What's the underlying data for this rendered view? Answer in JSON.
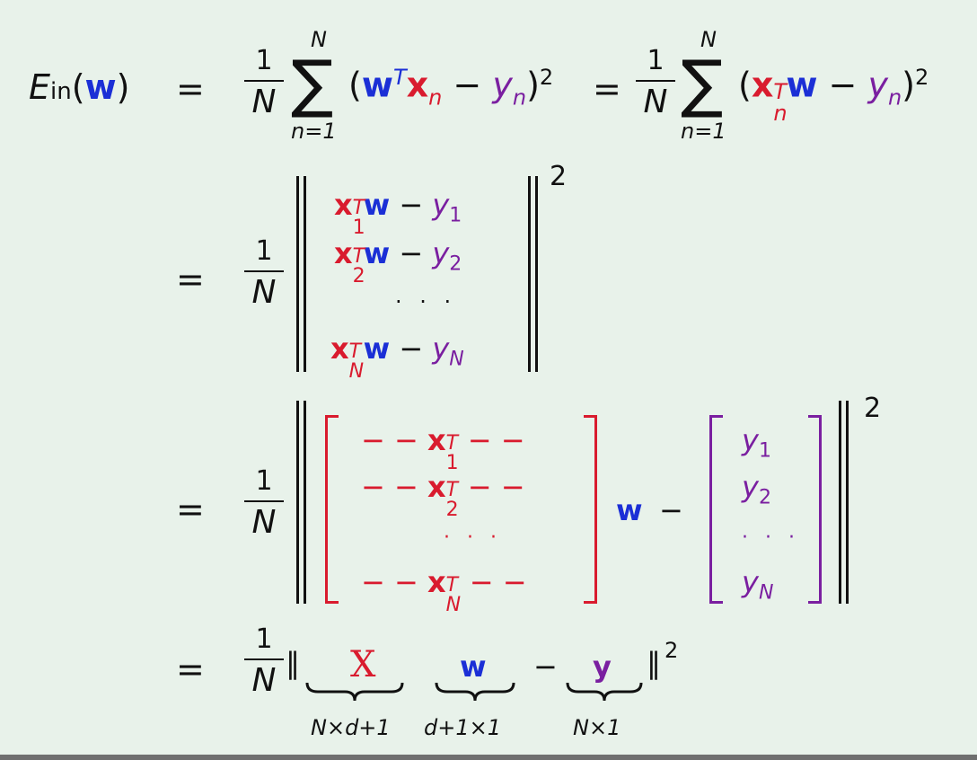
{
  "slide": {
    "background": "#e8f2ea",
    "colors": {
      "w": "#1b2fd6",
      "x": "#d91b2e",
      "y": "#7a1fa0"
    },
    "line1": {
      "lhs_E": "E",
      "lhs_sub": "in",
      "lhs_open": "(",
      "lhs_w": "w",
      "lhs_close": ")",
      "eq": "=",
      "frac_num": "1",
      "frac_den": "N",
      "sum_sym": "∑",
      "sum_top": "N",
      "sum_bot": "n=1",
      "term1_open": "(",
      "term1_w": "w",
      "term1_T": "T",
      "term1_x": "x",
      "term1_xsub": "n",
      "term1_minus": " − ",
      "term1_y": "y",
      "term1_ysub": "n",
      "term1_close": ")",
      "term1_sq": "2",
      "eq2": "=",
      "term2_open": "(",
      "term2_x": "x",
      "term2_T": "T",
      "term2_xsub": "n",
      "term2_w": "w",
      "term2_minus": " − ",
      "term2_y": "y",
      "term2_ysub": "n",
      "term2_close": ")",
      "term2_sq": "2"
    },
    "line2": {
      "eq": "=",
      "frac_num": "1",
      "frac_den": "N",
      "sq": "2",
      "rows": [
        {
          "x": "x",
          "T": "T",
          "sub": "1",
          "w": "w",
          "minus": " − ",
          "y": "y",
          "ysub": "1"
        },
        {
          "x": "x",
          "T": "T",
          "sub": "2",
          "w": "w",
          "minus": " − ",
          "y": "y",
          "ysub": "2"
        },
        {
          "x": "x",
          "T": "T",
          "sub": "N",
          "w": "w",
          "minus": " − ",
          "y": "y",
          "ysub": "N"
        }
      ],
      "dots": "· · ·"
    },
    "line3": {
      "eq": "=",
      "frac_num": "1",
      "frac_den": "N",
      "sq": "2",
      "xrows": [
        {
          "dash_l": "− −",
          "x": "x",
          "T": "T",
          "sub": "1",
          "dash_r": "− −"
        },
        {
          "dash_l": "− −",
          "x": "x",
          "T": "T",
          "sub": "2",
          "dash_r": "− −"
        },
        {
          "dash_l": "− −",
          "x": "x",
          "T": "T",
          "sub": "N",
          "dash_r": "− −"
        }
      ],
      "xdots": "· · ·",
      "w": "w",
      "minus": "−",
      "yrows": [
        {
          "y": "y",
          "sub": "1"
        },
        {
          "y": "y",
          "sub": "2"
        },
        {
          "y": "y",
          "sub": "N"
        }
      ],
      "ydots": "· · ·"
    },
    "line4": {
      "eq": "=",
      "frac_num": "1",
      "frac_den": "N",
      "norm_open": "‖",
      "X": "X",
      "w": "w",
      "minus": "−",
      "y": "y",
      "norm_close": "‖",
      "sq": "2",
      "X_dim": "N×d+1",
      "w_dim": "d+1×1",
      "y_dim": "N×1"
    }
  }
}
